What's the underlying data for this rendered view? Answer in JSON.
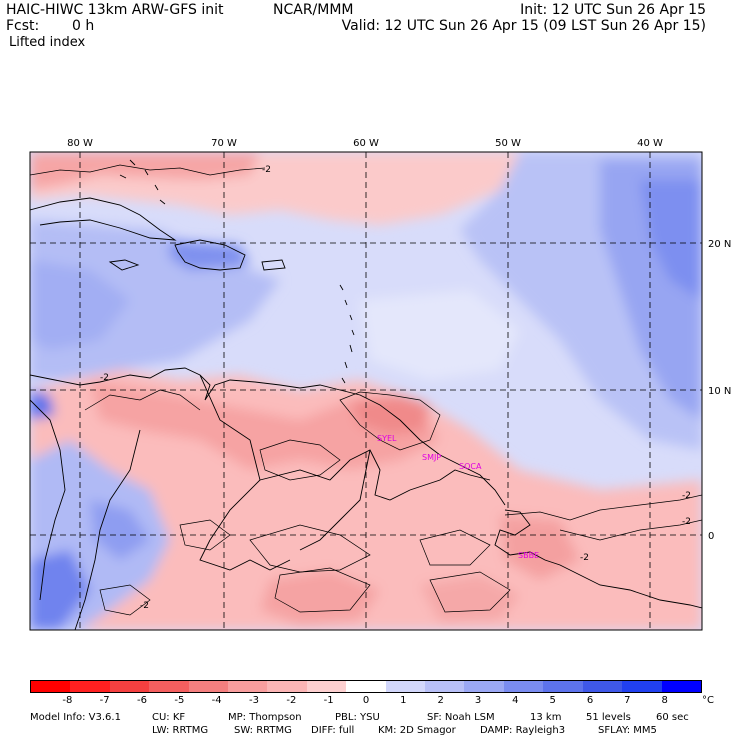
{
  "header": {
    "model_title": "HAIC-HIWC 13km ARW-GFS init",
    "org": "NCAR/MMM",
    "fcst_label": "Fcst:",
    "fcst_value": "0 h",
    "field_name": "Lifted index",
    "init": "Init: 12 UTC Sun 26 Apr 15",
    "valid": "Valid: 12 UTC Sun 26 Apr 15 (09 LST Sun 26 Apr 15)"
  },
  "map": {
    "lon_labels": [
      "80 W",
      "70 W",
      "60 W",
      "50 W",
      "40 W"
    ],
    "lat_labels": [
      "20 N",
      "10 N",
      "0"
    ],
    "contour_labels": [
      "-2",
      "-2",
      "-2",
      "-2",
      "-2",
      "-2"
    ],
    "stations": [
      "SYEL",
      "SMJP",
      "SOCA",
      "SBBE"
    ],
    "colors": {
      "strong_negative": "#ff0000",
      "negative": "#f47f7f",
      "weak_negative": "#fbc3c3",
      "neutral": "#ffffff",
      "weak_positive": "#d2d7fb",
      "positive": "#7a8cf0",
      "strong_positive": "#0000ff"
    }
  },
  "colorbar": {
    "labels": [
      "-8",
      "-7",
      "-6",
      "-5",
      "-4",
      "-3",
      "-2",
      "-1",
      "0",
      "1",
      "2",
      "3",
      "4",
      "5",
      "6",
      "7",
      "8"
    ],
    "unit": "°C",
    "colors": [
      "#ff0000",
      "#ff2020",
      "#f54040",
      "#f45f5f",
      "#f47f7f",
      "#f89e9e",
      "#fbb5b5",
      "#fdd0d0",
      "#ffffff",
      "#d2d7fb",
      "#b8c0f7",
      "#9ba8f4",
      "#7a8cf0",
      "#5d73ec",
      "#3f58e8",
      "#2140f0",
      "#0000ff"
    ]
  },
  "model_info": {
    "line1": [
      "Model Info: V3.6.1",
      "CU: KF",
      "MP: Thompson",
      "PBL: YSU",
      "SF: Noah LSM",
      "13 km",
      "51 levels",
      "60 sec"
    ],
    "line2": [
      "LW: RRTMG",
      "SW: RRTMG",
      "DIFF: full",
      "KM: 2D Smagor",
      "DAMP: Rayleigh3",
      "SFLAY: MM5"
    ]
  }
}
